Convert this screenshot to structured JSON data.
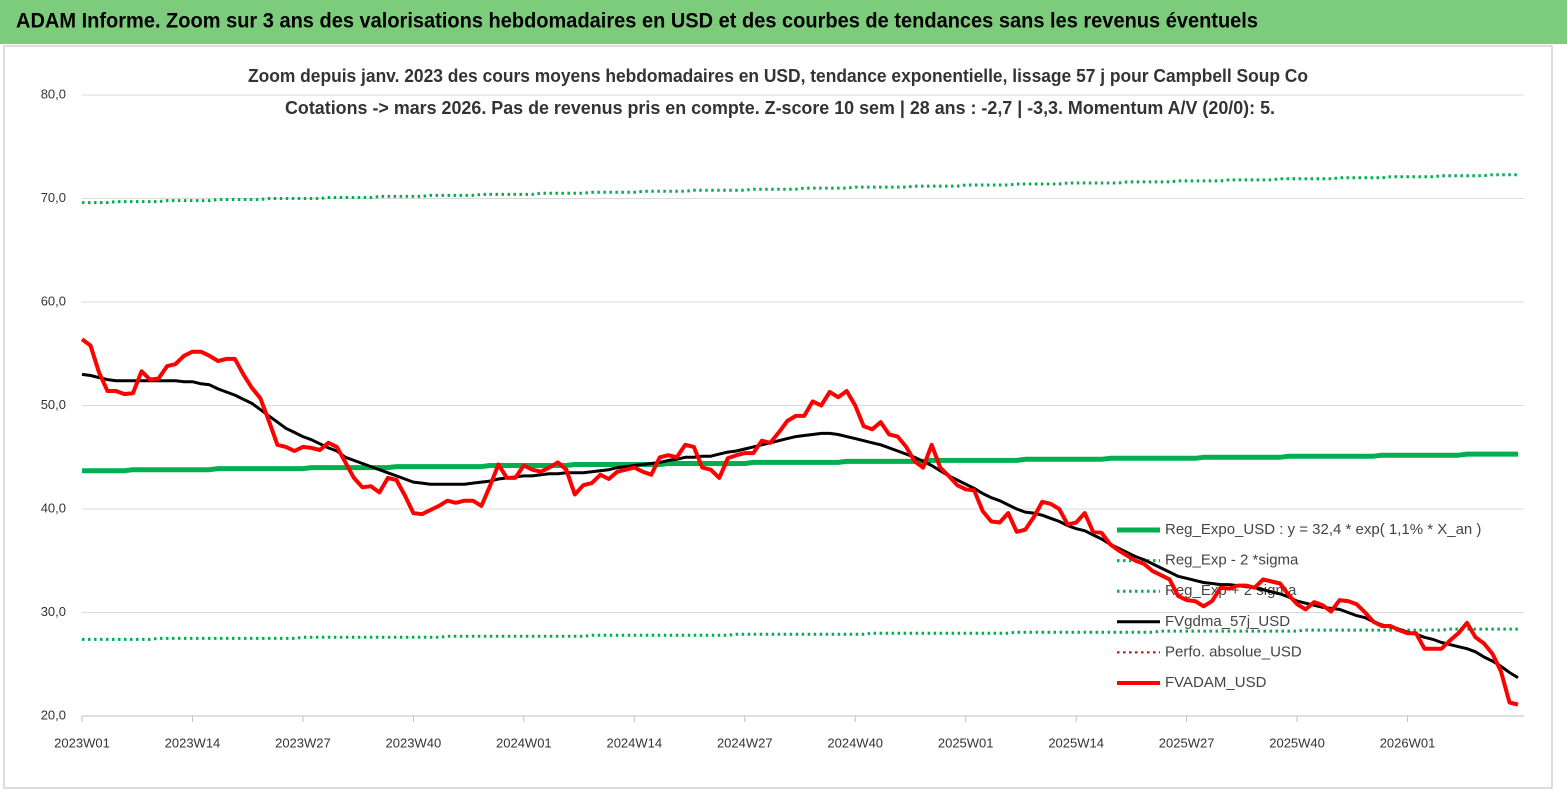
{
  "header": {
    "title": "ADAM Informe. Zoom sur 3 ans des valorisations hebdomadaires en USD et des courbes de tendances sans les revenus éventuels"
  },
  "chart_data": {
    "type": "line",
    "title": "Zoom depuis janv. 2023 des cours moyens hebdomadaires en USD, tendance exponentielle, lissage 57 j pour Campbell Soup Co",
    "subtitle": "Cotations -> mars 2026. Pas de revenus pris en  compte. Z-score 10 sem  | 28 ans : -2,7  | -3,3. Momentum A/V (20/0): 5.",
    "categories": [
      "2023W01",
      null,
      null,
      null,
      null,
      null,
      null,
      null,
      null,
      null,
      null,
      null,
      null,
      "2023W14",
      null,
      null,
      null,
      null,
      null,
      null,
      null,
      null,
      null,
      null,
      null,
      null,
      "2023W27",
      null,
      null,
      null,
      null,
      null,
      null,
      null,
      null,
      null,
      null,
      null,
      null,
      "2023W40",
      null,
      null,
      null,
      null,
      null,
      null,
      null,
      null,
      null,
      null,
      null,
      null,
      "2024W01",
      null,
      null,
      null,
      null,
      null,
      null,
      null,
      null,
      null,
      null,
      null,
      null,
      "2024W14",
      null,
      null,
      null,
      null,
      null,
      null,
      null,
      null,
      null,
      null,
      null,
      null,
      "2024W27",
      null,
      null,
      null,
      null,
      null,
      null,
      null,
      null,
      null,
      null,
      null,
      null,
      "2024W40",
      null,
      null,
      null,
      null,
      null,
      null,
      null,
      null,
      null,
      null,
      null,
      null,
      "2025W01",
      null,
      null,
      null,
      null,
      null,
      null,
      null,
      null,
      null,
      null,
      null,
      null,
      "2025W14",
      null,
      null,
      null,
      null,
      null,
      null,
      null,
      null,
      null,
      null,
      null,
      null,
      "2025W27",
      null,
      null,
      null,
      null,
      null,
      null,
      null,
      null,
      null,
      null,
      null,
      null,
      "2025W40",
      null,
      null,
      null,
      null,
      null,
      null,
      null,
      null,
      null,
      null,
      null,
      null,
      "2026W01",
      null,
      null,
      null,
      null,
      null,
      null,
      null,
      null,
      null,
      null,
      null,
      null,
      null
    ],
    "ylim": [
      20,
      80
    ],
    "yticks": [
      {
        "value": 20,
        "label": "20,0"
      },
      {
        "value": 30,
        "label": "30,0"
      },
      {
        "value": 40,
        "label": "40,0"
      },
      {
        "value": 50,
        "label": "50,0"
      },
      {
        "value": 60,
        "label": "60,0"
      },
      {
        "value": 70,
        "label": "70,0"
      },
      {
        "value": 80,
        "label": "80,0"
      }
    ],
    "grid": true,
    "legend": "right",
    "series": [
      {
        "name": "Reg_Expo_USD : y = 32,4 * exp( 1,1% *  X_an )",
        "color": "#00b050",
        "style": "solid",
        "values": [
          43.7,
          43.7,
          43.7,
          43.7,
          43.7,
          43.7,
          43.8,
          43.8,
          43.8,
          43.8,
          43.8,
          43.8,
          43.8,
          43.8,
          43.8,
          43.8,
          43.9,
          43.9,
          43.9,
          43.9,
          43.9,
          43.9,
          43.9,
          43.9,
          43.9,
          43.9,
          43.9,
          44.0,
          44.0,
          44.0,
          44.0,
          44.0,
          44.0,
          44.0,
          44.0,
          44.0,
          44.0,
          44.1,
          44.1,
          44.1,
          44.1,
          44.1,
          44.1,
          44.1,
          44.1,
          44.1,
          44.1,
          44.1,
          44.2,
          44.2,
          44.2,
          44.2,
          44.2,
          44.2,
          44.2,
          44.2,
          44.2,
          44.2,
          44.3,
          44.3,
          44.3,
          44.3,
          44.3,
          44.3,
          44.3,
          44.3,
          44.3,
          44.3,
          44.3,
          44.4,
          44.4,
          44.4,
          44.4,
          44.4,
          44.4,
          44.4,
          44.4,
          44.4,
          44.4,
          44.5,
          44.5,
          44.5,
          44.5,
          44.5,
          44.5,
          44.5,
          44.5,
          44.5,
          44.5,
          44.5,
          44.6,
          44.6,
          44.6,
          44.6,
          44.6,
          44.6,
          44.6,
          44.6,
          44.6,
          44.6,
          44.7,
          44.7,
          44.7,
          44.7,
          44.7,
          44.7,
          44.7,
          44.7,
          44.7,
          44.7,
          44.7,
          44.8,
          44.8,
          44.8,
          44.8,
          44.8,
          44.8,
          44.8,
          44.8,
          44.8,
          44.8,
          44.9,
          44.9,
          44.9,
          44.9,
          44.9,
          44.9,
          44.9,
          44.9,
          44.9,
          44.9,
          44.9,
          45.0,
          45.0,
          45.0,
          45.0,
          45.0,
          45.0,
          45.0,
          45.0,
          45.0,
          45.0,
          45.1,
          45.1,
          45.1,
          45.1,
          45.1,
          45.1,
          45.1,
          45.1,
          45.1,
          45.1,
          45.1,
          45.2,
          45.2,
          45.2,
          45.2,
          45.2,
          45.2,
          45.2,
          45.2,
          45.2,
          45.2,
          45.3,
          45.3,
          45.3,
          45.3,
          45.3,
          45.3,
          45.3
        ]
      },
      {
        "name": "Reg_Exp - 2 *sigma",
        "color": "#00b050",
        "style": "dotted",
        "values": [
          27.4,
          27.4,
          27.4,
          27.4,
          27.4,
          27.4,
          27.4,
          27.4,
          27.4,
          27.5,
          27.5,
          27.5,
          27.5,
          27.5,
          27.5,
          27.5,
          27.5,
          27.5,
          27.5,
          27.5,
          27.5,
          27.5,
          27.5,
          27.5,
          27.5,
          27.5,
          27.6,
          27.6,
          27.6,
          27.6,
          27.6,
          27.6,
          27.6,
          27.6,
          27.6,
          27.6,
          27.6,
          27.6,
          27.6,
          27.6,
          27.6,
          27.6,
          27.6,
          27.7,
          27.7,
          27.7,
          27.7,
          27.7,
          27.7,
          27.7,
          27.7,
          27.7,
          27.7,
          27.7,
          27.7,
          27.7,
          27.7,
          27.7,
          27.7,
          27.7,
          27.8,
          27.8,
          27.8,
          27.8,
          27.8,
          27.8,
          27.8,
          27.8,
          27.8,
          27.8,
          27.8,
          27.8,
          27.8,
          27.8,
          27.8,
          27.8,
          27.8,
          27.9,
          27.9,
          27.9,
          27.9,
          27.9,
          27.9,
          27.9,
          27.9,
          27.9,
          27.9,
          27.9,
          27.9,
          27.9,
          27.9,
          27.9,
          27.9,
          28.0,
          28.0,
          28.0,
          28.0,
          28.0,
          28.0,
          28.0,
          28.0,
          28.0,
          28.0,
          28.0,
          28.0,
          28.0,
          28.0,
          28.0,
          28.0,
          28.0,
          28.1,
          28.1,
          28.1,
          28.1,
          28.1,
          28.1,
          28.1,
          28.1,
          28.1,
          28.1,
          28.1,
          28.1,
          28.1,
          28.1,
          28.1,
          28.1,
          28.1,
          28.2,
          28.2,
          28.2,
          28.2,
          28.2,
          28.2,
          28.2,
          28.2,
          28.2,
          28.2,
          28.2,
          28.2,
          28.2,
          28.2,
          28.2,
          28.2,
          28.2,
          28.3,
          28.3,
          28.3,
          28.3,
          28.3,
          28.3,
          28.3,
          28.3,
          28.3,
          28.3,
          28.3,
          28.3,
          28.3,
          28.3,
          28.3,
          28.3,
          28.3,
          28.4,
          28.4,
          28.4,
          28.4,
          28.4,
          28.4,
          28.4,
          28.4,
          28.4
        ]
      },
      {
        "name": "Reg_Exp + 2 sigma",
        "color": "#00b050",
        "style": "dotted",
        "values": [
          69.6,
          69.6,
          69.6,
          69.6,
          69.7,
          69.7,
          69.7,
          69.7,
          69.7,
          69.7,
          69.8,
          69.8,
          69.8,
          69.8,
          69.8,
          69.8,
          69.9,
          69.9,
          69.9,
          69.9,
          69.9,
          69.9,
          70.0,
          70.0,
          70.0,
          70.0,
          70.0,
          70.0,
          70.0,
          70.1,
          70.1,
          70.1,
          70.1,
          70.1,
          70.1,
          70.2,
          70.2,
          70.2,
          70.2,
          70.2,
          70.2,
          70.3,
          70.3,
          70.3,
          70.3,
          70.3,
          70.3,
          70.4,
          70.4,
          70.4,
          70.4,
          70.4,
          70.4,
          70.4,
          70.5,
          70.5,
          70.5,
          70.5,
          70.5,
          70.5,
          70.6,
          70.6,
          70.6,
          70.6,
          70.6,
          70.6,
          70.7,
          70.7,
          70.7,
          70.7,
          70.7,
          70.7,
          70.8,
          70.8,
          70.8,
          70.8,
          70.8,
          70.8,
          70.8,
          70.9,
          70.9,
          70.9,
          70.9,
          70.9,
          70.9,
          71.0,
          71.0,
          71.0,
          71.0,
          71.0,
          71.0,
          71.1,
          71.1,
          71.1,
          71.1,
          71.1,
          71.1,
          71.1,
          71.2,
          71.2,
          71.2,
          71.2,
          71.2,
          71.2,
          71.3,
          71.3,
          71.3,
          71.3,
          71.3,
          71.3,
          71.4,
          71.4,
          71.4,
          71.4,
          71.4,
          71.4,
          71.5,
          71.5,
          71.5,
          71.5,
          71.5,
          71.5,
          71.5,
          71.6,
          71.6,
          71.6,
          71.6,
          71.6,
          71.6,
          71.7,
          71.7,
          71.7,
          71.7,
          71.7,
          71.7,
          71.8,
          71.8,
          71.8,
          71.8,
          71.8,
          71.8,
          71.9,
          71.9,
          71.9,
          71.9,
          71.9,
          71.9,
          71.9,
          72.0,
          72.0,
          72.0,
          72.0,
          72.0,
          72.0,
          72.1,
          72.1,
          72.1,
          72.1,
          72.1,
          72.1,
          72.2,
          72.2,
          72.2,
          72.2,
          72.2,
          72.2,
          72.3,
          72.3,
          72.3,
          72.3
        ]
      },
      {
        "name": "FVgdma_57j_USD",
        "color": "#000000",
        "style": "solid",
        "values": [
          53.0,
          52.9,
          52.7,
          52.5,
          52.4,
          52.4,
          52.4,
          52.4,
          52.4,
          52.4,
          52.4,
          52.4,
          52.3,
          52.3,
          52.1,
          52.0,
          51.6,
          51.3,
          51.0,
          50.6,
          50.2,
          49.6,
          49.0,
          48.4,
          47.8,
          47.4,
          47.0,
          46.7,
          46.3,
          45.9,
          45.6,
          45.0,
          44.7,
          44.4,
          44.1,
          43.8,
          43.5,
          43.2,
          42.9,
          42.6,
          42.5,
          42.4,
          42.4,
          42.4,
          42.4,
          42.4,
          42.5,
          42.6,
          42.7,
          42.9,
          43.0,
          43.1,
          43.2,
          43.2,
          43.3,
          43.4,
          43.4,
          43.5,
          43.5,
          43.5,
          43.6,
          43.7,
          43.8,
          44.0,
          44.1,
          44.2,
          44.3,
          44.4,
          44.5,
          44.7,
          44.8,
          45.0,
          45.0,
          45.1,
          45.1,
          45.3,
          45.5,
          45.6,
          45.8,
          46.0,
          46.2,
          46.4,
          46.6,
          46.8,
          47.0,
          47.1,
          47.2,
          47.3,
          47.3,
          47.2,
          47.0,
          46.8,
          46.6,
          46.4,
          46.2,
          45.9,
          45.6,
          45.3,
          45.0,
          44.6,
          44.2,
          43.7,
          43.2,
          42.8,
          42.4,
          42.0,
          41.5,
          41.1,
          40.8,
          40.4,
          40.0,
          39.7,
          39.6,
          39.4,
          39.1,
          38.8,
          38.4,
          38.1,
          37.9,
          37.5,
          37.1,
          36.6,
          36.2,
          35.8,
          35.4,
          35.1,
          34.7,
          34.3,
          33.9,
          33.5,
          33.3,
          33.1,
          32.9,
          32.8,
          32.7,
          32.7,
          32.6,
          32.5,
          32.4,
          32.2,
          32.0,
          31.8,
          31.5,
          31.1,
          30.9,
          30.7,
          30.5,
          30.4,
          30.3,
          30.0,
          29.7,
          29.5,
          29.1,
          28.8,
          28.6,
          28.4,
          28.1,
          27.9,
          27.6,
          27.4,
          27.1,
          26.9,
          26.7,
          26.5,
          26.2,
          25.7,
          25.3,
          24.8,
          24.2,
          23.7
        ]
      },
      {
        "name": "Perfo. absolue_USD",
        "color": "#c00000",
        "style": "dotted"
      },
      {
        "name": "FVADAM_USD",
        "color": "#ff0000",
        "style": "solid",
        "values": [
          56.4,
          55.8,
          53.2,
          51.4,
          51.4,
          51.1,
          51.2,
          53.3,
          52.5,
          52.6,
          53.8,
          54.0,
          54.8,
          55.2,
          55.2,
          54.8,
          54.3,
          54.5,
          54.5,
          53.0,
          51.7,
          50.7,
          48.5,
          46.2,
          46.0,
          45.6,
          46.0,
          45.9,
          45.7,
          46.4,
          46.0,
          44.5,
          43.0,
          42.1,
          42.2,
          41.6,
          43.0,
          42.8,
          41.3,
          39.6,
          39.5,
          39.9,
          40.3,
          40.8,
          40.6,
          40.8,
          40.8,
          40.3,
          42.2,
          44.3,
          43.0,
          43.0,
          44.2,
          43.8,
          43.6,
          44.0,
          44.5,
          43.8,
          41.4,
          42.3,
          42.5,
          43.3,
          42.9,
          43.6,
          43.8,
          44.0,
          43.6,
          43.3,
          45.0,
          45.2,
          45.0,
          46.2,
          46.0,
          44.0,
          43.8,
          43.0,
          44.9,
          45.2,
          45.4,
          45.4,
          46.6,
          46.4,
          47.4,
          48.5,
          49.0,
          49.0,
          50.4,
          50.0,
          51.3,
          50.8,
          51.4,
          50.0,
          48.0,
          47.7,
          48.4,
          47.2,
          47.0,
          46.0,
          44.6,
          44.0,
          46.2,
          44.0,
          43.2,
          42.3,
          41.9,
          41.8,
          39.8,
          38.8,
          38.7,
          39.6,
          37.8,
          38.0,
          39.2,
          40.7,
          40.5,
          40.0,
          38.5,
          38.7,
          39.6,
          37.8,
          37.7,
          36.6,
          36.0,
          35.5,
          35.0,
          34.7,
          34.0,
          33.6,
          33.2,
          31.6,
          31.2,
          31.1,
          30.6,
          31.1,
          32.4,
          32.3,
          32.6,
          32.6,
          32.4,
          33.2,
          33.0,
          32.8,
          31.7,
          30.8,
          30.3,
          31.0,
          30.7,
          30.1,
          31.2,
          31.1,
          30.8,
          30.0,
          29.1,
          28.7,
          28.7,
          28.3,
          28.0,
          28.0,
          26.5,
          26.5,
          26.5,
          27.3,
          28.0,
          29.0,
          27.6,
          27.0,
          26.0,
          24.3,
          21.3,
          21.1
        ]
      }
    ]
  }
}
